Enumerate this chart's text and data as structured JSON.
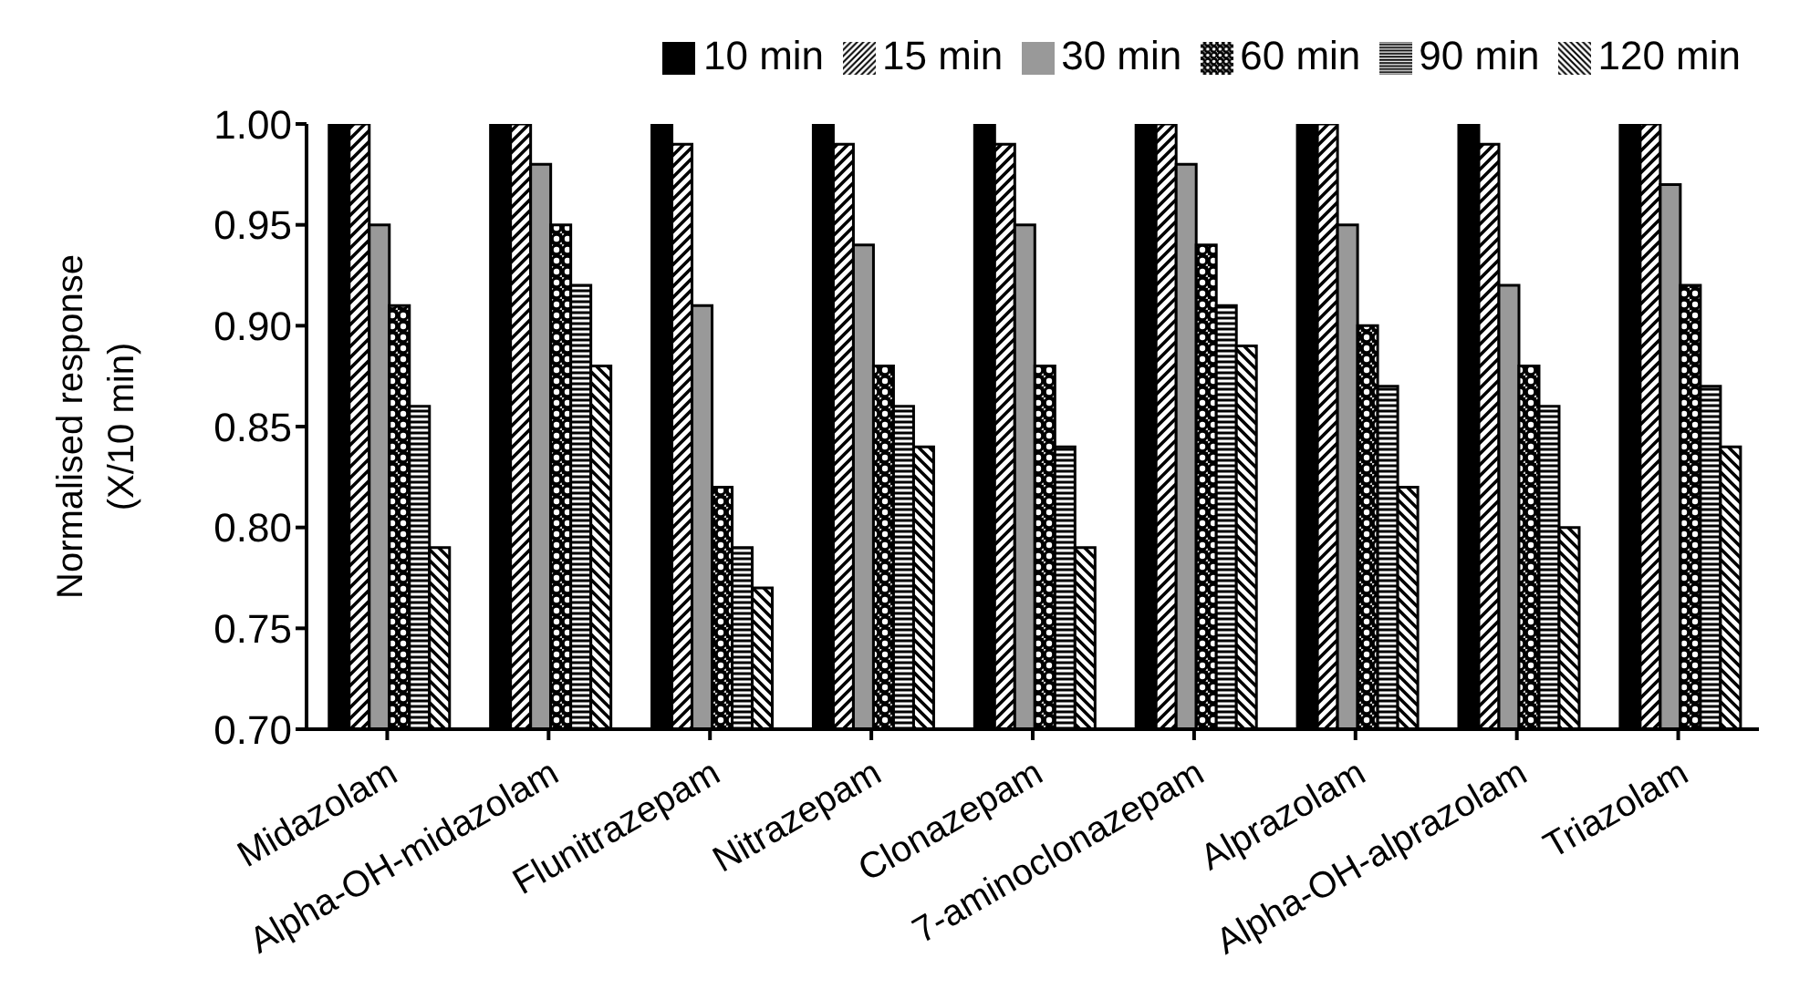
{
  "chart_data": {
    "type": "bar",
    "ylabel": "Normalised response (X/10 min)",
    "categories": [
      "Midazolam",
      "Alpha-OH-midazolam",
      "Flunitrazepam",
      "Nitrazepam",
      "Clonazepam",
      "7-aminoclonazepam",
      "Alprazolam",
      "Alpha-OH-alprazolam",
      "Triazolam"
    ],
    "series": [
      {
        "name": "10 min",
        "color": "#000000",
        "values": [
          1,
          1,
          1,
          1,
          1,
          1,
          1,
          1,
          1
        ]
      },
      {
        "name": "15 min",
        "color": "#000000",
        "values": [
          1,
          1,
          0.99,
          0.99,
          0.99,
          1,
          1,
          0.99,
          1
        ]
      },
      {
        "name": "30 min",
        "color": "#999999",
        "values": [
          0.95,
          0.98,
          0.91,
          0.94,
          0.95,
          0.98,
          0.95,
          0.92,
          0.97
        ]
      },
      {
        "name": "60 min",
        "color": "#000000",
        "values": [
          0.91,
          0.95,
          0.82,
          0.88,
          0.88,
          0.94,
          0.9,
          0.88,
          0.92
        ]
      },
      {
        "name": "90 min",
        "color": "#000000",
        "values": [
          0.86,
          0.92,
          0.79,
          0.86,
          0.84,
          0.91,
          0.87,
          0.86,
          0.87
        ]
      },
      {
        "name": "120 min",
        "color": "#000000",
        "values": [
          0.79,
          0.88,
          0.77,
          0.84,
          0.79,
          0.89,
          0.82,
          0.8,
          0.84
        ]
      }
    ],
    "ylim": [
      0.7,
      1.0
    ],
    "yticks": [
      {
        "value": 0.7,
        "label": "0.70"
      },
      {
        "value": 0.75,
        "label": "0.75"
      },
      {
        "value": 0.8,
        "label": "0.80"
      },
      {
        "value": 0.85,
        "label": "0.85"
      },
      {
        "value": 0.9,
        "label": "0.90"
      },
      {
        "value": 0.95,
        "label": "0.95"
      },
      {
        "value": 1.0,
        "label": "1.00"
      }
    ],
    "grid": false,
    "legend": "top"
  }
}
